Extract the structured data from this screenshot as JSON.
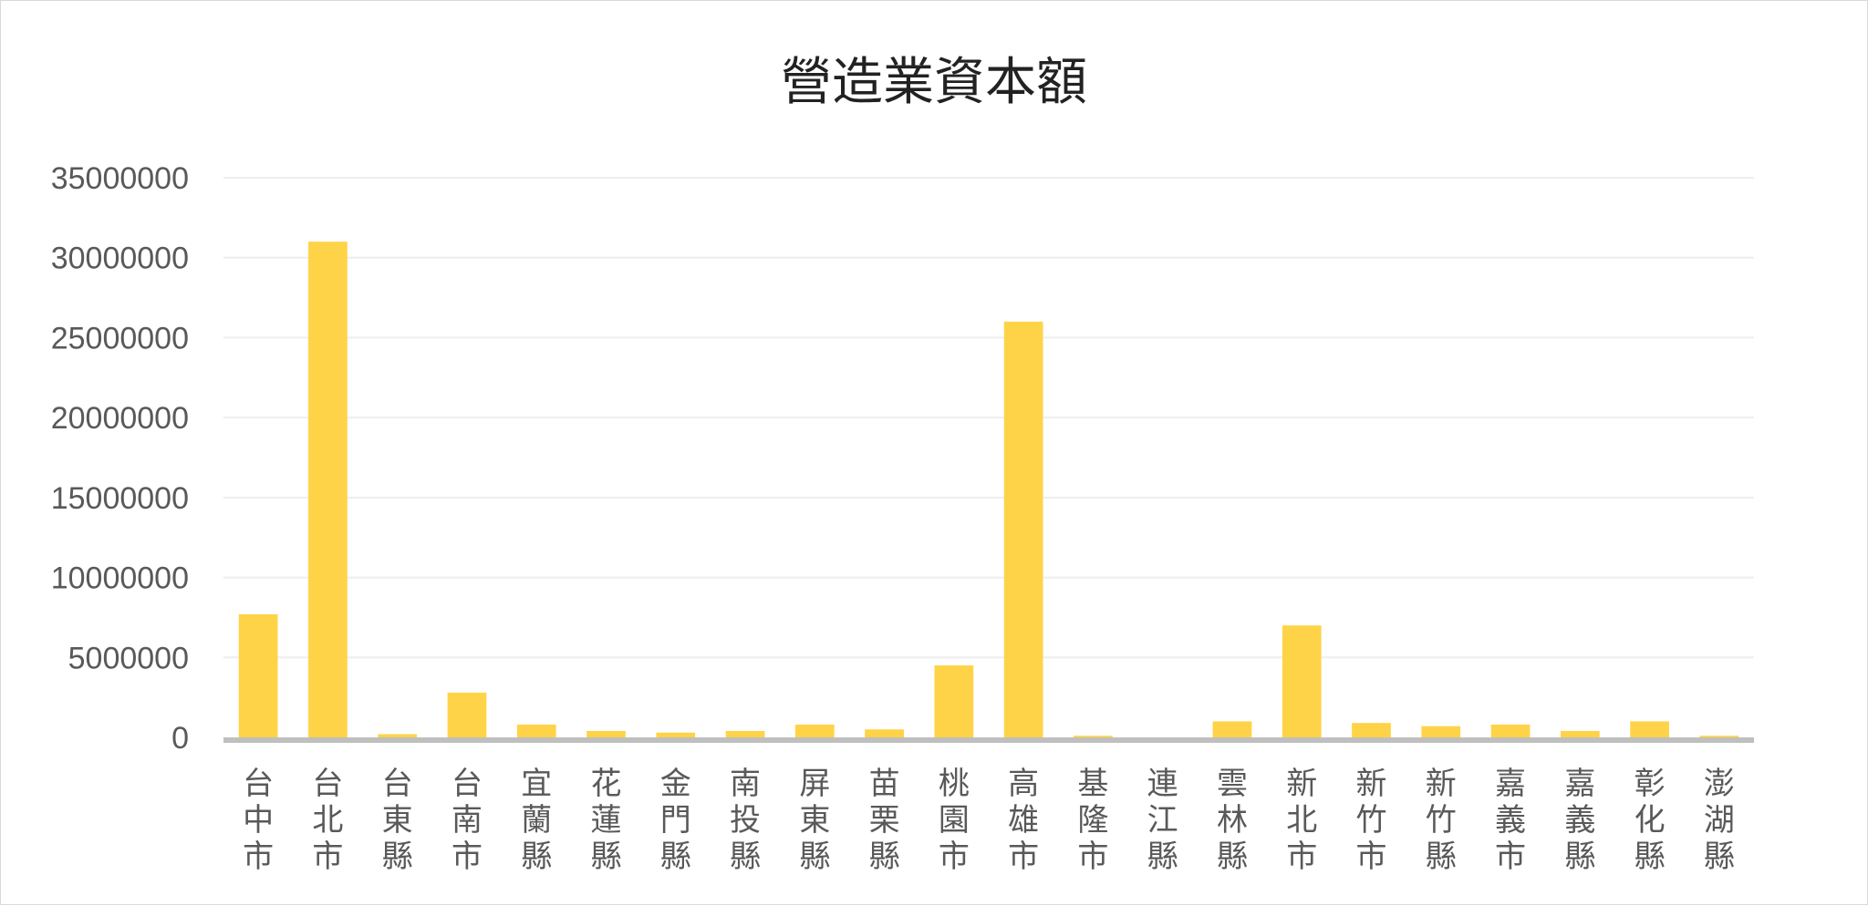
{
  "chart_data": {
    "type": "bar",
    "title": "營造業資本額",
    "xlabel": "",
    "ylabel": "",
    "ylim": [
      0,
      35000000
    ],
    "yticks": [
      0,
      5000000,
      10000000,
      15000000,
      20000000,
      25000000,
      30000000,
      35000000
    ],
    "ytick_labels": [
      "0",
      "5000000",
      "10000000",
      "15000000",
      "20000000",
      "25000000",
      "30000000",
      "35000000"
    ],
    "grid": true,
    "legend": "none",
    "bar_color": "#ffd347",
    "axis_color": "#bfbfbf",
    "grid_color": "#eeeeee",
    "categories": [
      "台中市",
      "台北市",
      "台東縣",
      "台南市",
      "宜蘭縣",
      "花蓮縣",
      "金門縣",
      "南投縣",
      "屏東縣",
      "苗栗縣",
      "桃園市",
      "高雄市",
      "基隆市",
      "連江縣",
      "雲林縣",
      "新北市",
      "新竹市",
      "新竹縣",
      "嘉義市",
      "嘉義縣",
      "彰化縣",
      "澎湖縣"
    ],
    "values": [
      7700000,
      31000000,
      200000,
      2800000,
      800000,
      400000,
      300000,
      400000,
      800000,
      500000,
      4500000,
      26000000,
      100000,
      0,
      1000000,
      7000000,
      900000,
      700000,
      800000,
      400000,
      1000000,
      100000
    ]
  }
}
